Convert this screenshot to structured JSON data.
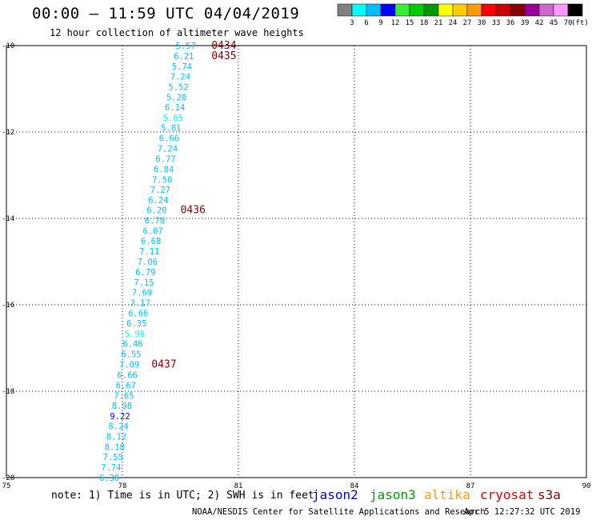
{
  "header": {
    "title": "00:00 – 11:59 UTC 04/04/2019",
    "subtitle": "12 hour collection of altimeter wave heights"
  },
  "colorbar": {
    "colors": [
      "#808080",
      "#00ffff",
      "#00bfff",
      "#0000ff",
      "#33ee33",
      "#00cc00",
      "#009900",
      "#ffff00",
      "#ffcc00",
      "#ff9900",
      "#ff0000",
      "#cc0000",
      "#880000",
      "#990099",
      "#cc66cc",
      "#ff99ff",
      "#000000"
    ],
    "labels": [
      "3",
      "6",
      "9",
      "12",
      "15",
      "18",
      "21",
      "24",
      "27",
      "30",
      "33",
      "36",
      "39",
      "42",
      "45",
      "70"
    ],
    "unit": "(ft)"
  },
  "footer": {
    "note": "note: 1) Time is in UTC; 2) SWH is in feet",
    "credit": "NOAA/NESDIS Center for Satellite Applications and Research",
    "timestamp": "Apr  5 12:27:32 UTC 2019",
    "satellites": [
      {
        "name": "jason2",
        "color": "#0000cc"
      },
      {
        "name": "jason3",
        "color": "#009900"
      },
      {
        "name": "altika",
        "color": "#ff9900"
      },
      {
        "name": "cryosat",
        "color": "#dd0000"
      },
      {
        "name": "s3a",
        "color": "#880000"
      }
    ]
  },
  "chart_data": {
    "type": "scatter",
    "xlim": [
      75,
      90
    ],
    "ylim": [
      -20,
      -10
    ],
    "xticks": [
      75,
      78,
      81,
      84,
      87,
      90
    ],
    "yticks": [
      -10,
      -12,
      -14,
      -16,
      -18,
      -20
    ],
    "grid": true,
    "points": [
      {
        "lon": 79.9,
        "lat": -10.0,
        "swh": "5.57",
        "color": "#00bfff"
      },
      {
        "lon": 79.85,
        "lat": -10.24,
        "swh": "6.21",
        "color": "#00bfff"
      },
      {
        "lon": 79.8,
        "lat": -10.48,
        "swh": "5.74",
        "color": "#00bfff"
      },
      {
        "lon": 79.76,
        "lat": -10.71,
        "swh": "7.24",
        "color": "#00bfff"
      },
      {
        "lon": 79.71,
        "lat": -10.95,
        "swh": "5.52",
        "color": "#00bfff"
      },
      {
        "lon": 79.66,
        "lat": -11.19,
        "swh": "5.20",
        "color": "#00bfff"
      },
      {
        "lon": 79.62,
        "lat": -11.43,
        "swh": "6.14",
        "color": "#00bfff"
      },
      {
        "lon": 79.57,
        "lat": -11.67,
        "swh": "5.65",
        "color": "#00ffff"
      },
      {
        "lon": 79.52,
        "lat": -11.9,
        "swh": "5.81",
        "color": "#00bfff"
      },
      {
        "lon": 79.47,
        "lat": -12.14,
        "swh": "6.66",
        "color": "#00bfff"
      },
      {
        "lon": 79.43,
        "lat": -12.38,
        "swh": "7.24",
        "color": "#00bfff"
      },
      {
        "lon": 79.38,
        "lat": -12.62,
        "swh": "6.77",
        "color": "#00bfff"
      },
      {
        "lon": 79.33,
        "lat": -12.86,
        "swh": "6.84",
        "color": "#00bfff"
      },
      {
        "lon": 79.29,
        "lat": -13.1,
        "swh": "7.50",
        "color": "#00bfff"
      },
      {
        "lon": 79.24,
        "lat": -13.33,
        "swh": "7.27",
        "color": "#00bfff"
      },
      {
        "lon": 79.19,
        "lat": -13.57,
        "swh": "6.24",
        "color": "#00bfff"
      },
      {
        "lon": 79.15,
        "lat": -13.81,
        "swh": "6.20",
        "color": "#00bfff"
      },
      {
        "lon": 79.1,
        "lat": -14.05,
        "swh": "6.78",
        "color": "#00bfff"
      },
      {
        "lon": 79.05,
        "lat": -14.29,
        "swh": "6.07",
        "color": "#00bfff"
      },
      {
        "lon": 79.0,
        "lat": -14.52,
        "swh": "6.68",
        "color": "#00bfff"
      },
      {
        "lon": 78.96,
        "lat": -14.76,
        "swh": "7.11",
        "color": "#00bfff"
      },
      {
        "lon": 78.91,
        "lat": -15.0,
        "swh": "7.06",
        "color": "#00bfff"
      },
      {
        "lon": 78.86,
        "lat": -15.24,
        "swh": "6.79",
        "color": "#00bfff"
      },
      {
        "lon": 78.82,
        "lat": -15.48,
        "swh": "7.15",
        "color": "#00bfff"
      },
      {
        "lon": 78.77,
        "lat": -15.71,
        "swh": "7.69",
        "color": "#00bfff"
      },
      {
        "lon": 78.72,
        "lat": -15.95,
        "swh": "7.17",
        "color": "#00bfff"
      },
      {
        "lon": 78.67,
        "lat": -16.19,
        "swh": "6.66",
        "color": "#00bfff"
      },
      {
        "lon": 78.63,
        "lat": -16.43,
        "swh": "6.35",
        "color": "#00bfff"
      },
      {
        "lon": 78.58,
        "lat": -16.67,
        "swh": "5.96",
        "color": "#00ffff"
      },
      {
        "lon": 78.53,
        "lat": -16.9,
        "swh": "6.46",
        "color": "#00bfff"
      },
      {
        "lon": 78.49,
        "lat": -17.14,
        "swh": "6.55",
        "color": "#00bfff"
      },
      {
        "lon": 78.44,
        "lat": -17.38,
        "swh": "7.09",
        "color": "#00bfff"
      },
      {
        "lon": 78.39,
        "lat": -17.62,
        "swh": "6.66",
        "color": "#00bfff"
      },
      {
        "lon": 78.35,
        "lat": -17.86,
        "swh": "6.67",
        "color": "#00bfff"
      },
      {
        "lon": 78.3,
        "lat": -18.1,
        "swh": "7.65",
        "color": "#00bfff"
      },
      {
        "lon": 78.25,
        "lat": -18.33,
        "swh": "8.98",
        "color": "#00bfff"
      },
      {
        "lon": 78.2,
        "lat": -18.57,
        "swh": "9.22",
        "color": "#0000ff"
      },
      {
        "lon": 78.16,
        "lat": -18.81,
        "swh": "8.24",
        "color": "#00bfff"
      },
      {
        "lon": 78.11,
        "lat": -19.05,
        "swh": "8.12",
        "color": "#00bfff"
      },
      {
        "lon": 78.06,
        "lat": -19.29,
        "swh": "8.18",
        "color": "#00bfff"
      },
      {
        "lon": 78.02,
        "lat": -19.52,
        "swh": "7.55",
        "color": "#00bfff"
      },
      {
        "lon": 77.97,
        "lat": -19.76,
        "swh": "7.74",
        "color": "#00bfff"
      },
      {
        "lon": 77.92,
        "lat": -20.0,
        "swh": "6.30",
        "color": "#00bfff"
      }
    ],
    "time_labels": [
      {
        "text": "0434",
        "lon": 80.95,
        "lat": -10.0,
        "color": "#880000"
      },
      {
        "text": "0435",
        "lon": 80.95,
        "lat": -10.24,
        "color": "#880000"
      },
      {
        "text": "0436",
        "lon": 80.15,
        "lat": -13.81,
        "color": "#880000"
      },
      {
        "text": "0437",
        "lon": 79.4,
        "lat": -17.38,
        "color": "#880000"
      }
    ]
  }
}
